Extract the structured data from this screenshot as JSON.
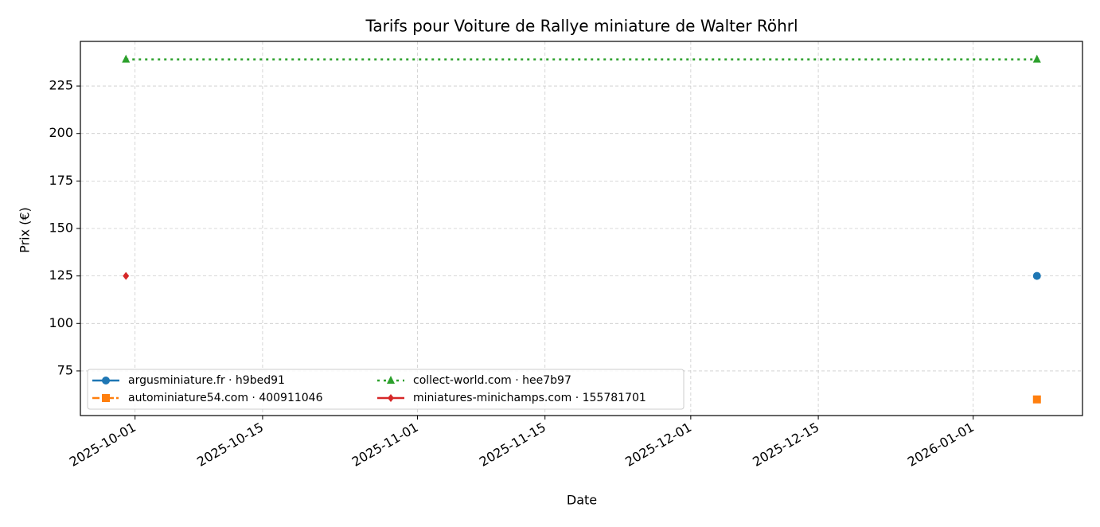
{
  "chart_data": {
    "type": "line",
    "title": "Tarifs pour Voiture de Rallye miniature de Walter Röhrl",
    "x_label": "Date",
    "y_label": "Prix (€)",
    "x": [
      "2025-09-30",
      "2026-01-08"
    ],
    "series": [
      {
        "name": "argusminiature.fr · h9bed91",
        "color": "#1f77b4",
        "marker": "circle",
        "linestyle": "solid",
        "values": [
          null,
          125
        ]
      },
      {
        "name": "autominiature54.com · 400911046",
        "color": "#ff7f0e",
        "marker": "square",
        "linestyle": "dashdot",
        "values": [
          null,
          60
        ]
      },
      {
        "name": "collect-world.com · hee7b97",
        "color": "#2ca02c",
        "marker": "triangle",
        "linestyle": "dotted",
        "values": [
          239,
          239
        ]
      },
      {
        "name": "miniatures-minichamps.com · 155781701",
        "color": "#d62728",
        "marker": "diamond",
        "linestyle": "solid",
        "values": [
          125,
          null
        ]
      }
    ],
    "xlim": [
      "2025-09-25",
      "2026-01-13"
    ],
    "xticks": [
      "2025-10-01",
      "2025-10-15",
      "2025-11-01",
      "2025-11-15",
      "2025-12-01",
      "2025-12-15",
      "2026-01-01"
    ],
    "ylim": [
      51.5,
      248.5
    ],
    "yticks": [
      75,
      100,
      125,
      150,
      175,
      200,
      225
    ],
    "grid": true,
    "legend": "lower left"
  }
}
